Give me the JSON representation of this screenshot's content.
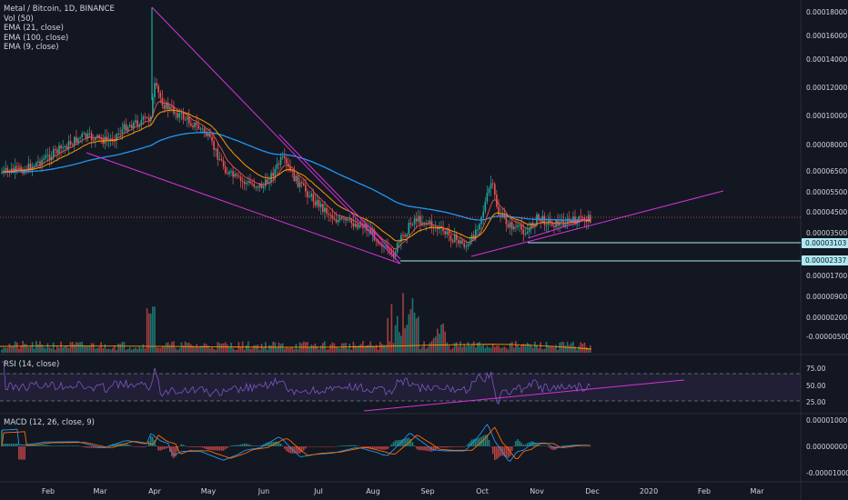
{
  "header": {
    "title": "Metal / Bitcoin, 1D, BINANCE",
    "indicators": [
      "Vol (50)",
      "EMA (21, close)",
      "EMA (100, close)",
      "EMA (9, close)"
    ]
  },
  "price_axis": {
    "labels": [
      "0.00018000",
      "0.00016000",
      "0.00014000",
      "0.00012000",
      "0.00010000",
      "0.00008000",
      "0.00006500",
      "0.00005500",
      "0.00004500",
      "0.00003500"
    ],
    "line_levels": [
      {
        "label": "0.00003103",
        "color": "#aee9f0"
      },
      {
        "label": "0.00002337",
        "color": "#aee9f0"
      }
    ]
  },
  "volume_axis": {
    "labels": [
      "0.00001700",
      "0.00000900",
      "0.00000200",
      "-0.00000500"
    ]
  },
  "rsi": {
    "label": "RSI (14, close)",
    "axis": [
      "75.00",
      "50.00",
      "25.00"
    ]
  },
  "macd": {
    "label": "MACD (12, 26, close, 9)",
    "axis": [
      "0.00001000",
      "0.00000000",
      "-0.00001000"
    ]
  },
  "time_axis": [
    "Feb",
    "Mar",
    "Apr",
    "May",
    "Jun",
    "Jul",
    "Aug",
    "Sep",
    "Oct",
    "Nov",
    "Dec",
    "2020",
    "Feb",
    "Mar"
  ],
  "colors": {
    "background": "#131722",
    "up": "#26a69a",
    "down": "#ef5350",
    "ema9": "#ef5350",
    "ema21": "#ff9800",
    "ema100": "#2196f3",
    "trendline": "#d633d6",
    "rsi": "#7e57c2",
    "macd_line": "#2196f3",
    "signal_line": "#ff6d00"
  }
}
